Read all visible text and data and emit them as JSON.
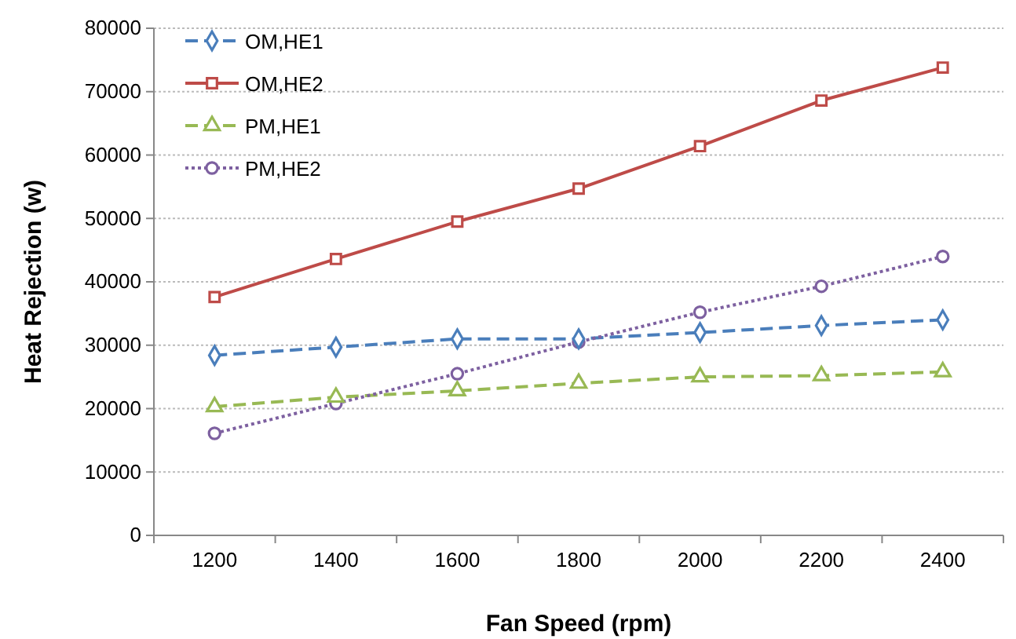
{
  "chart_data": {
    "type": "line",
    "xlabel": "Fan Speed (rpm)",
    "ylabel": "Heat Rejection (w)",
    "categories": [
      "1200",
      "1400",
      "1600",
      "1800",
      "2000",
      "2200",
      "2400"
    ],
    "ylim": [
      0,
      80000
    ],
    "yticks": [
      0,
      10000,
      20000,
      30000,
      40000,
      50000,
      60000,
      70000,
      80000
    ],
    "grid": "y",
    "legend": "top left",
    "series": [
      {
        "name": "OM,HE1",
        "color": "#4a7ebb",
        "marker": "diamond",
        "line_style": "dashed",
        "values": [
          28400,
          29700,
          31000,
          31000,
          32000,
          33100,
          34000
        ]
      },
      {
        "name": "OM,HE2",
        "color": "#be4b48",
        "marker": "square",
        "line_style": "solid",
        "values": [
          37600,
          43600,
          49500,
          54700,
          61400,
          68600,
          73800
        ]
      },
      {
        "name": "PM,HE1",
        "color": "#98b954",
        "marker": "triangle",
        "line_style": "dashed",
        "values": [
          20300,
          21800,
          22800,
          24000,
          25000,
          25200,
          25800
        ]
      },
      {
        "name": "PM,HE2",
        "color": "#7d60a0",
        "marker": "circle",
        "line_style": "dotted",
        "values": [
          16100,
          20800,
          25500,
          30500,
          35200,
          39300,
          44000
        ]
      }
    ]
  }
}
